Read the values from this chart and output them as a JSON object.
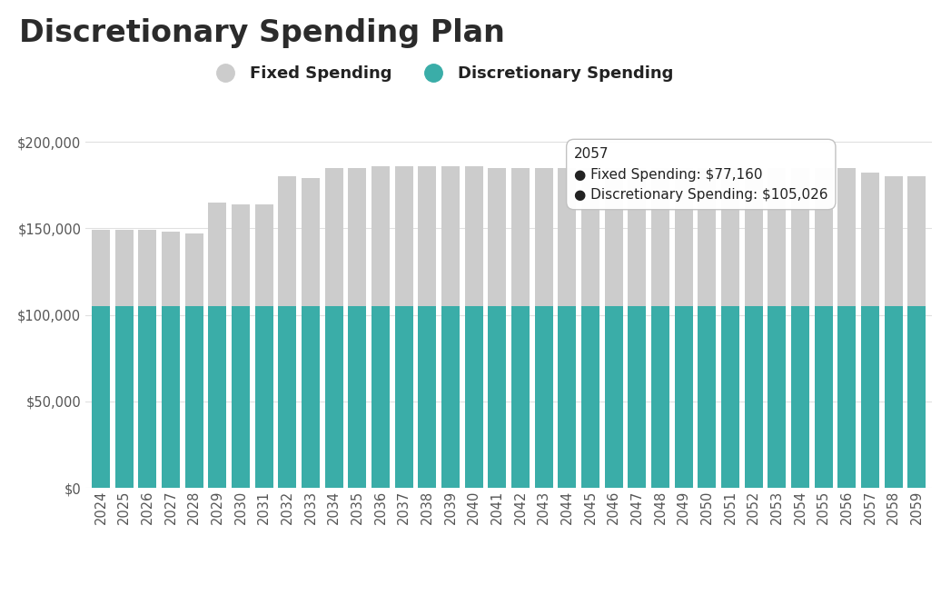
{
  "title": "Discretionary Spending Plan",
  "years": [
    2024,
    2025,
    2026,
    2027,
    2028,
    2029,
    2030,
    2031,
    2032,
    2033,
    2034,
    2035,
    2036,
    2037,
    2038,
    2039,
    2040,
    2041,
    2042,
    2043,
    2044,
    2045,
    2046,
    2047,
    2048,
    2049,
    2050,
    2051,
    2052,
    2053,
    2054,
    2055,
    2056,
    2057,
    2058,
    2059
  ],
  "discretionary": [
    105026,
    105026,
    105026,
    105026,
    105026,
    105026,
    105026,
    105026,
    105026,
    105026,
    105026,
    105026,
    105026,
    105026,
    105026,
    105026,
    105026,
    105026,
    105026,
    105026,
    105026,
    105026,
    105026,
    105026,
    105026,
    105026,
    105026,
    105026,
    105026,
    105026,
    105026,
    105026,
    105026,
    105026,
    105026,
    105026
  ],
  "fixed": [
    44000,
    44000,
    44000,
    43000,
    42000,
    60000,
    59000,
    59000,
    75000,
    74000,
    80000,
    80000,
    81000,
    81000,
    81000,
    81000,
    81000,
    80000,
    80000,
    80000,
    80000,
    80000,
    80000,
    80000,
    80000,
    80000,
    80000,
    80000,
    80000,
    80000,
    80000,
    80000,
    80000,
    77160,
    75000,
    75000
  ],
  "fixed_color": "#cccccc",
  "discretionary_color": "#3aada8",
  "background_color": "#ffffff",
  "ylim": [
    0,
    220000
  ],
  "yticks": [
    0,
    50000,
    100000,
    150000,
    200000
  ],
  "legend_fixed_label": "Fixed Spending",
  "legend_disc_label": "Discretionary Spending",
  "tooltip_year": "2057",
  "tooltip_fixed_label": "Fixed Spending",
  "tooltip_fixed_val": "$77,160",
  "tooltip_disc_label": "Discretionary Spending",
  "tooltip_disc_val": "$105,026",
  "title_fontsize": 24,
  "legend_fontsize": 13,
  "tick_fontsize": 10.5,
  "ytick_color": "#555555",
  "xtick_color": "#555555",
  "grid_color": "#e0e0e0",
  "title_color": "#2b2b2b",
  "legend_text_color": "#222222"
}
